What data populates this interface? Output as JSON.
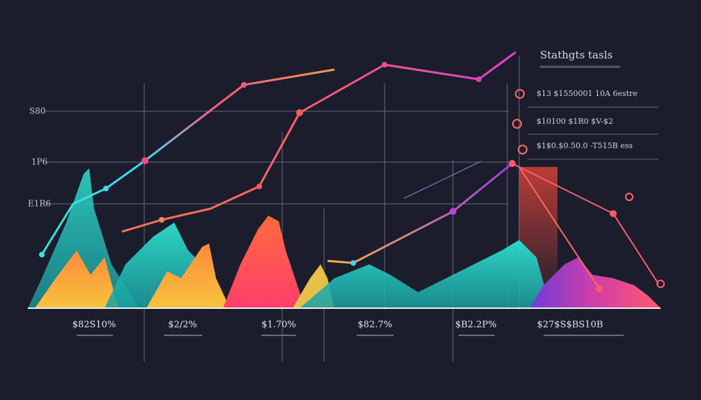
{
  "title": "Stathgts tasls",
  "legend": [
    "$13 $1550001 10A 6estre",
    "$10100 $1R0 $V-$2",
    "$1$0.$0.50.0 -T515B ess"
  ],
  "y_labels": [
    "S80",
    "1P6",
    "E1R6"
  ],
  "x_labels": [
    "$82S10%",
    "$2/2%",
    "$1.70%",
    "$82.7%",
    "$B2.2P%",
    "$27$S$BS10B"
  ]
}
